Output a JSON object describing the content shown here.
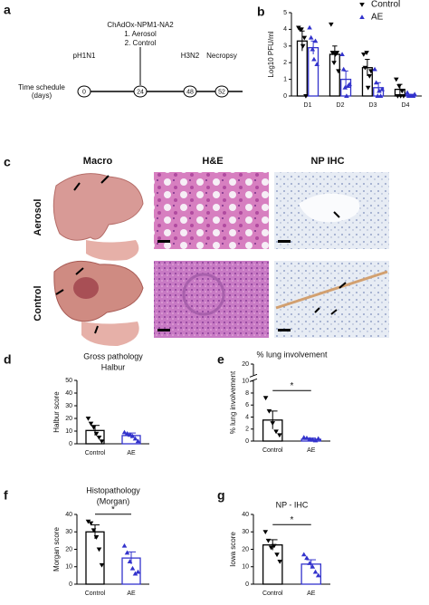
{
  "panel_labels": [
    "a",
    "b",
    "c",
    "d",
    "e",
    "f",
    "g"
  ],
  "timeline": {
    "label": [
      "Time schedule",
      "(days)"
    ],
    "events": [
      {
        "day": "0",
        "label": [
          "pH1N1"
        ]
      },
      {
        "day": "24",
        "label": [
          "ChAdOx-NPM1-NA2",
          "1. Aerosol",
          "2. Control"
        ]
      },
      {
        "day": "48",
        "label": [
          "H3N2"
        ]
      },
      {
        "day": "52",
        "label": [
          "Necropsy"
        ]
      }
    ]
  },
  "micrographs": {
    "columns": [
      "Macro",
      "H&E",
      "NP IHC"
    ],
    "rows": [
      "Aerosol",
      "Control"
    ]
  },
  "chart_data": [
    {
      "type": "grouped-bar",
      "y_label": "Log10 PFU/ml",
      "categories": [
        "D1",
        "D2",
        "D3",
        "D4"
      ],
      "ylim": [
        0,
        5
      ],
      "yticks": [
        0,
        1,
        2,
        3,
        4,
        5
      ],
      "legend": "top-right",
      "series": [
        {
          "name": "Control",
          "color": "#000000",
          "values": [
            3.3,
            2.5,
            1.7,
            0.4
          ],
          "errors": [
            0.6,
            0.5,
            0.5,
            0.3
          ],
          "points": [
            [
              4.1,
              4.0,
              4.0,
              3.0,
              3.5,
              0
            ],
            [
              4.3,
              2.6,
              2.0,
              2.5,
              2.6,
              1.5
            ],
            [
              2.5,
              1.7,
              2.6,
              0.5,
              1.2,
              1.5
            ],
            [
              1.0,
              0,
              0.6,
              0,
              0.3,
              0
            ]
          ]
        },
        {
          "name": "AE",
          "color": "#3333cc",
          "values": [
            2.9,
            1.0,
            0.5,
            0.05
          ],
          "errors": [
            0.4,
            0.5,
            0.3,
            0.05
          ],
          "points": [
            [
              4.1,
              3.5,
              2.8,
              2.2,
              3.3,
              1.9
            ],
            [
              2.5,
              1.6,
              0.5,
              0,
              0.6,
              0.7
            ],
            [
              1.6,
              0.8,
              0,
              0.3,
              0,
              0.4
            ],
            [
              0.2,
              0,
              0,
              0,
              0,
              0.1
            ]
          ]
        }
      ]
    },
    {
      "type": "bar",
      "title": "Gross pathology",
      "subtitle": "Halbur",
      "y_label": "Halbur score",
      "categories": [
        "Control",
        "AE"
      ],
      "colors": [
        "#000000",
        "#3333cc"
      ],
      "ylim": [
        0,
        50
      ],
      "yticks": [
        0,
        10,
        20,
        30,
        40,
        50
      ],
      "values": [
        10.5,
        6.5
      ],
      "errors": [
        4,
        2
      ],
      "points": [
        [
          20,
          16,
          13,
          8,
          5,
          2
        ],
        [
          9,
          8,
          7,
          6,
          4,
          2
        ]
      ]
    },
    {
      "type": "bar",
      "title": "% lung involvement",
      "y_label": "% lung involvement",
      "categories": [
        "Control",
        "AE"
      ],
      "colors": [
        "#000000",
        "#3333cc"
      ],
      "ylim": [
        0,
        20
      ],
      "axis_break": 10,
      "yticks": [
        0,
        2,
        4,
        6,
        8,
        10,
        20
      ],
      "values": [
        3.5,
        0.3
      ],
      "errors": [
        1.5,
        0.2
      ],
      "points": [
        [
          7.2,
          5.0,
          3.0,
          1.6,
          1.0
        ],
        [
          0.6,
          0.5,
          0.3,
          0.2,
          0.1,
          0.4
        ]
      ],
      "significance": "*"
    },
    {
      "type": "bar",
      "title": "Histopathology",
      "subtitle": "(Morgan)",
      "y_label": "Morgan score",
      "categories": [
        "Control",
        "AE"
      ],
      "colors": [
        "#000000",
        "#3333cc"
      ],
      "ylim": [
        0,
        40
      ],
      "yticks": [
        0,
        10,
        20,
        30,
        40
      ],
      "values": [
        30,
        15
      ],
      "errors": [
        4,
        3.5
      ],
      "points": [
        [
          36,
          35,
          31,
          27,
          20,
          11
        ],
        [
          22,
          18,
          13,
          9,
          6,
          7
        ]
      ],
      "significance": "*"
    },
    {
      "type": "bar",
      "title": "NP - IHC",
      "y_label": "Iowa score",
      "categories": [
        "Control",
        "AE"
      ],
      "colors": [
        "#000000",
        "#3333cc"
      ],
      "ylim": [
        0,
        40
      ],
      "yticks": [
        0,
        10,
        20,
        30,
        40
      ],
      "values": [
        22.5,
        11.5
      ],
      "errors": [
        3,
        2.5
      ],
      "points": [
        [
          30,
          25,
          21,
          22,
          17,
          13
        ],
        [
          17,
          15,
          12,
          10,
          7,
          5
        ]
      ],
      "significance": "*"
    }
  ]
}
